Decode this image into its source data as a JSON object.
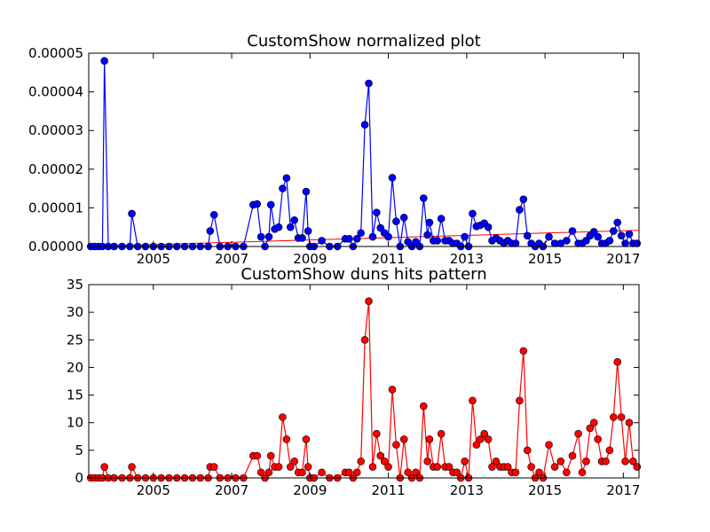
{
  "chart_data": [
    {
      "type": "line",
      "title": "CustomShow normalized plot",
      "xlabel": "",
      "ylabel": "",
      "xlim": [
        2003.35,
        2017.4
      ],
      "ylim": [
        0,
        5e-05
      ],
      "x_ticks": [
        2005,
        2007,
        2009,
        2011,
        2013,
        2015,
        2017
      ],
      "x_tick_labels": [
        "2005",
        "2007",
        "2009",
        "2011",
        "2013",
        "2015",
        "2017"
      ],
      "y_ticks": [
        0,
        1e-05,
        2e-05,
        3e-05,
        4e-05,
        5e-05
      ],
      "y_tick_labels": [
        "0.00000",
        "0.00001",
        "0.00002",
        "0.00003",
        "0.00004",
        "0.00005"
      ],
      "colors": {
        "series": "#0000ff",
        "trend": "#ff0000",
        "marker_edge": "#000000"
      },
      "series": [
        {
          "x": [
            2003.4,
            2003.5,
            2003.6,
            2003.7,
            2003.75,
            2003.85,
            2004.0,
            2004.2,
            2004.4,
            2004.45,
            2004.6,
            2004.8,
            2005.0,
            2005.2,
            2005.4,
            2005.6,
            2005.8,
            2006.0,
            2006.2,
            2006.4,
            2006.45,
            2006.55,
            2006.7,
            2006.9,
            2007.1,
            2007.3,
            2007.55,
            2007.65,
            2007.75,
            2007.85,
            2007.95,
            2008.0,
            2008.1,
            2008.2,
            2008.3,
            2008.4,
            2008.5,
            2008.6,
            2008.7,
            2008.8,
            2008.9,
            2008.95,
            2009.0,
            2009.1,
            2009.3,
            2009.5,
            2009.7,
            2009.9,
            2010.0,
            2010.1,
            2010.2,
            2010.3,
            2010.4,
            2010.5,
            2010.6,
            2010.7,
            2010.8,
            2010.9,
            2011.0,
            2011.1,
            2011.2,
            2011.3,
            2011.4,
            2011.5,
            2011.6,
            2011.7,
            2011.8,
            2011.9,
            2012.0,
            2012.05,
            2012.15,
            2012.25,
            2012.35,
            2012.45,
            2012.55,
            2012.65,
            2012.75,
            2012.85,
            2012.95,
            2013.05,
            2013.15,
            2013.25,
            2013.35,
            2013.45,
            2013.55,
            2013.65,
            2013.75,
            2013.85,
            2013.95,
            2014.05,
            2014.15,
            2014.25,
            2014.35,
            2014.45,
            2014.55,
            2014.65,
            2014.75,
            2014.85,
            2014.95,
            2015.1,
            2015.25,
            2015.4,
            2015.55,
            2015.7,
            2015.85,
            2015.95,
            2016.05,
            2016.15,
            2016.25,
            2016.35,
            2016.45,
            2016.55,
            2016.65,
            2016.75,
            2016.85,
            2016.95,
            2017.05,
            2017.15,
            2017.25,
            2017.35
          ],
          "values": [
            0.0,
            0.0,
            0.0,
            0.0,
            4.8e-05,
            0.0,
            0.0,
            0.0,
            0.0,
            8.5e-06,
            0.0,
            0.0,
            0.0,
            0.0,
            0.0,
            0.0,
            0.0,
            0.0,
            0.0,
            0.0,
            4e-06,
            8.2e-06,
            0.0,
            0.0,
            0.0,
            0.0,
            1.08e-05,
            1.1e-05,
            2.5e-06,
            0.0,
            2.5e-06,
            1.08e-05,
            4.5e-06,
            5e-06,
            1.5e-05,
            1.77e-05,
            5e-06,
            6.8e-06,
            2.2e-06,
            2.2e-06,
            1.42e-05,
            4e-06,
            0.0,
            0.0,
            1.5e-06,
            0.0,
            0.0,
            2e-06,
            2e-06,
            0.0,
            2e-06,
            3.5e-06,
            3.15e-05,
            4.22e-05,
            2.5e-06,
            8.8e-06,
            4.8e-06,
            3.5e-06,
            2.5e-06,
            1.78e-05,
            6.5e-06,
            0.0,
            7.5e-06,
            1.2e-06,
            0.0,
            1.2e-06,
            0.0,
            1.25e-05,
            3e-06,
            6.2e-06,
            1.5e-06,
            1.5e-06,
            7.2e-06,
            1.5e-06,
            1.5e-06,
            8e-07,
            8e-07,
            0.0,
            2.5e-06,
            0.0,
            8.5e-06,
            5.2e-06,
            5.5e-06,
            6e-06,
            5e-06,
            1.5e-06,
            2.2e-06,
            1.5e-06,
            8e-07,
            1.5e-06,
            8e-07,
            8e-07,
            9.5e-06,
            1.22e-05,
            2.8e-06,
            8e-07,
            0.0,
            8e-07,
            0.0,
            2.5e-06,
            8e-07,
            8e-07,
            1.5e-06,
            4e-06,
            8e-07,
            8e-07,
            1.5e-06,
            2.8e-06,
            3.8e-06,
            2.5e-06,
            8e-07,
            8e-07,
            1.5e-06,
            4e-06,
            6.2e-06,
            2.8e-06,
            8e-07,
            3.2e-06,
            8e-07,
            8e-07
          ]
        }
      ],
      "trendline": {
        "x": [
          2003.35,
          2017.4
        ],
        "values": [
          0.0,
          4.2e-06
        ]
      }
    },
    {
      "type": "line",
      "title": "CustomShow duns hits pattern",
      "xlabel": "",
      "ylabel": "",
      "xlim": [
        2003.35,
        2017.4
      ],
      "ylim": [
        0,
        35
      ],
      "x_ticks": [
        2005,
        2007,
        2009,
        2011,
        2013,
        2015,
        2017
      ],
      "x_tick_labels": [
        "2005",
        "2007",
        "2009",
        "2011",
        "2013",
        "2015",
        "2017"
      ],
      "y_ticks": [
        0,
        5,
        10,
        15,
        20,
        25,
        30,
        35
      ],
      "y_tick_labels": [
        "0",
        "5",
        "10",
        "15",
        "20",
        "25",
        "30",
        "35"
      ],
      "colors": {
        "series": "#ff0000",
        "marker_edge": "#000000"
      },
      "series": [
        {
          "x": [
            2003.4,
            2003.5,
            2003.6,
            2003.7,
            2003.75,
            2003.85,
            2004.0,
            2004.2,
            2004.4,
            2004.45,
            2004.6,
            2004.8,
            2005.0,
            2005.2,
            2005.4,
            2005.6,
            2005.8,
            2006.0,
            2006.2,
            2006.4,
            2006.45,
            2006.55,
            2006.7,
            2006.9,
            2007.1,
            2007.3,
            2007.55,
            2007.65,
            2007.75,
            2007.85,
            2007.95,
            2008.0,
            2008.1,
            2008.2,
            2008.3,
            2008.4,
            2008.5,
            2008.6,
            2008.7,
            2008.8,
            2008.9,
            2008.95,
            2009.0,
            2009.1,
            2009.3,
            2009.5,
            2009.7,
            2009.9,
            2010.0,
            2010.1,
            2010.2,
            2010.3,
            2010.4,
            2010.5,
            2010.6,
            2010.7,
            2010.8,
            2010.9,
            2011.0,
            2011.1,
            2011.2,
            2011.3,
            2011.4,
            2011.5,
            2011.6,
            2011.7,
            2011.8,
            2011.9,
            2012.0,
            2012.05,
            2012.15,
            2012.25,
            2012.35,
            2012.45,
            2012.55,
            2012.65,
            2012.75,
            2012.85,
            2012.95,
            2013.05,
            2013.15,
            2013.25,
            2013.35,
            2013.45,
            2013.55,
            2013.65,
            2013.75,
            2013.85,
            2013.95,
            2014.05,
            2014.15,
            2014.25,
            2014.35,
            2014.45,
            2014.55,
            2014.65,
            2014.75,
            2014.85,
            2014.95,
            2015.1,
            2015.25,
            2015.4,
            2015.55,
            2015.7,
            2015.85,
            2015.95,
            2016.05,
            2016.15,
            2016.25,
            2016.35,
            2016.45,
            2016.55,
            2016.65,
            2016.75,
            2016.85,
            2016.95,
            2017.05,
            2017.15,
            2017.25,
            2017.35
          ],
          "values": [
            0,
            0,
            0,
            0,
            2,
            0,
            0,
            0,
            0,
            2,
            0,
            0,
            0,
            0,
            0,
            0,
            0,
            0,
            0,
            0,
            2,
            2,
            0,
            0,
            0,
            0,
            4,
            4,
            1,
            0,
            1,
            4,
            2,
            2,
            11,
            7,
            2,
            3,
            1,
            1,
            7,
            2,
            0,
            0,
            1,
            0,
            0,
            1,
            1,
            0,
            1,
            3,
            25,
            32,
            2,
            8,
            4,
            3,
            2,
            16,
            6,
            0,
            7,
            1,
            0,
            1,
            0,
            13,
            3,
            7,
            2,
            2,
            8,
            2,
            2,
            1,
            1,
            0,
            3,
            0,
            14,
            6,
            7,
            8,
            7,
            2,
            3,
            2,
            2,
            2,
            1,
            1,
            14,
            23,
            5,
            2,
            0,
            1,
            0,
            6,
            2,
            3,
            1,
            4,
            8,
            1,
            3,
            9,
            10,
            7,
            3,
            3,
            5,
            11,
            21,
            11,
            3,
            10,
            3,
            2
          ]
        }
      ]
    }
  ]
}
